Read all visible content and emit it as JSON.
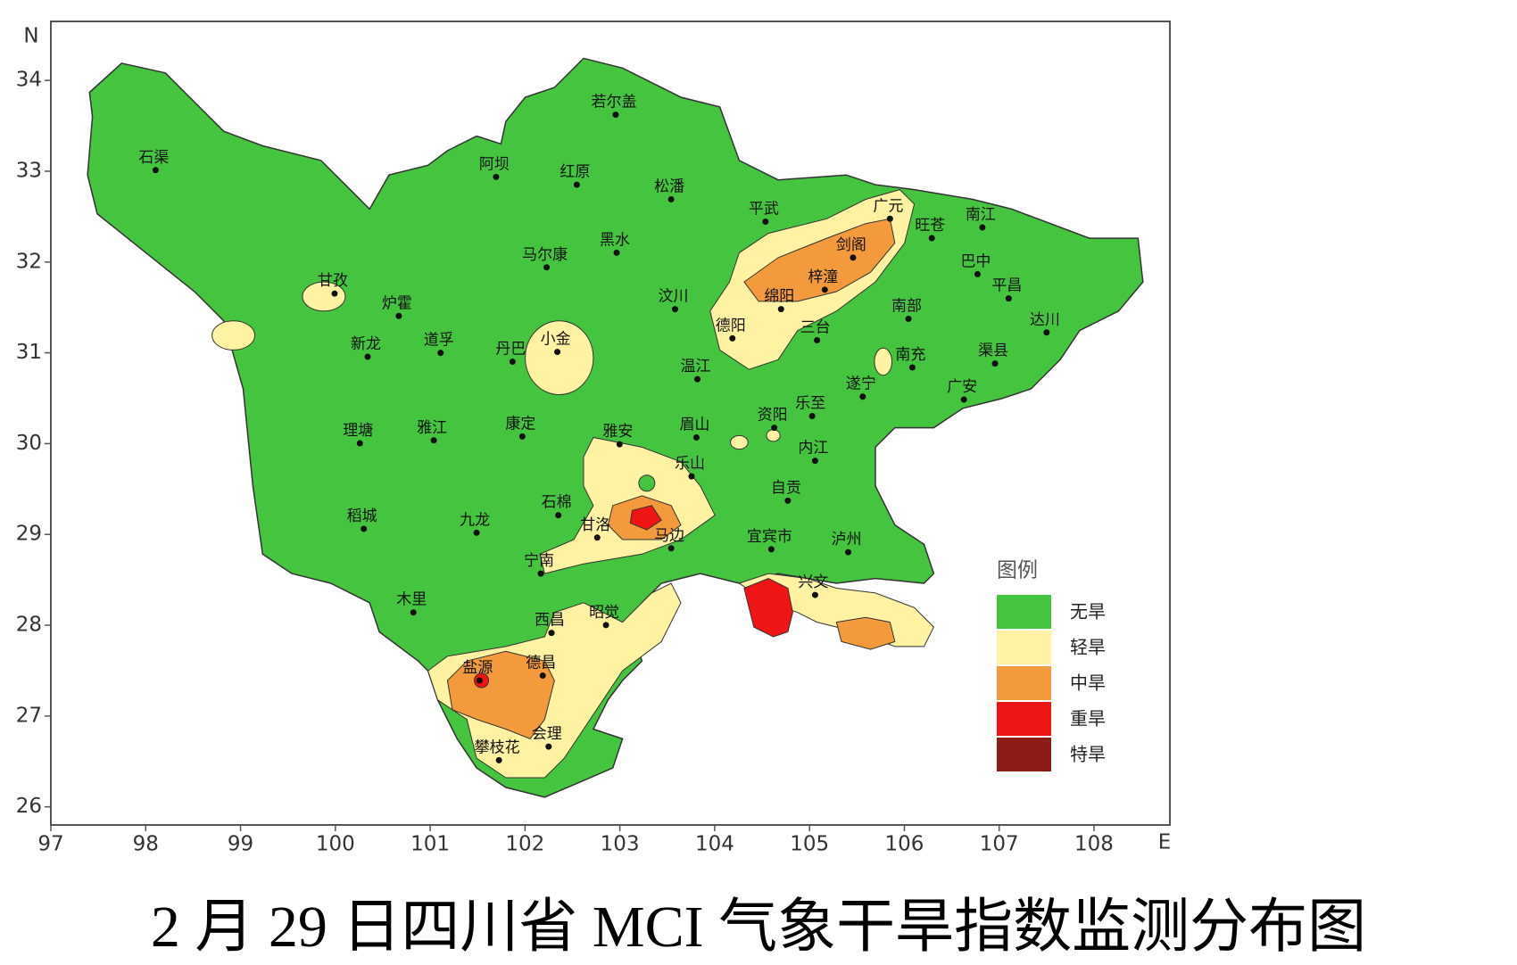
{
  "map": {
    "title": "2 月 29 日四川省 MCI 气象干旱指数监测分布图",
    "x_label": "E",
    "y_label": "N",
    "xlim": [
      97,
      108.8
    ],
    "ylim": [
      25.8,
      34.65
    ],
    "xticks": [
      97,
      98,
      99,
      100,
      101,
      102,
      103,
      104,
      105,
      106,
      107,
      108
    ],
    "yticks": [
      26,
      27,
      28,
      29,
      30,
      31,
      32,
      33,
      34
    ],
    "legend": {
      "title": "图例",
      "items": [
        {
          "label": "无旱",
          "color": "#45c43f"
        },
        {
          "label": "轻旱",
          "color": "#fff3a3"
        },
        {
          "label": "中旱",
          "color": "#f39a3d"
        },
        {
          "label": "重旱",
          "color": "#ef1515"
        },
        {
          "label": "特旱",
          "color": "#8e1a16"
        }
      ]
    },
    "cities": [
      "若尔盖",
      "石渠",
      "阿坝",
      "红原",
      "松潘",
      "平武",
      "广元",
      "旺苍",
      "南江",
      "马尔康",
      "黑水",
      "剑阁",
      "巴中",
      "平昌",
      "甘孜",
      "炉霍",
      "梓潼",
      "绵阳",
      "南部",
      "达川",
      "汶川",
      "德阳",
      "三台",
      "新龙",
      "道孚",
      "丹巴",
      "小金",
      "南充",
      "渠县",
      "温江",
      "遂宁",
      "广安",
      "乐至",
      "理塘",
      "雅江",
      "康定",
      "雅安",
      "眉山",
      "资阳",
      "内江",
      "乐山",
      "自贡",
      "石棉",
      "稻城",
      "九龙",
      "甘洛",
      "马边",
      "宜宾市",
      "泸州",
      "宁南",
      "兴文",
      "木里",
      "昭觉",
      "西昌",
      "盐源",
      "德昌",
      "会理",
      "攀枝花"
    ]
  }
}
